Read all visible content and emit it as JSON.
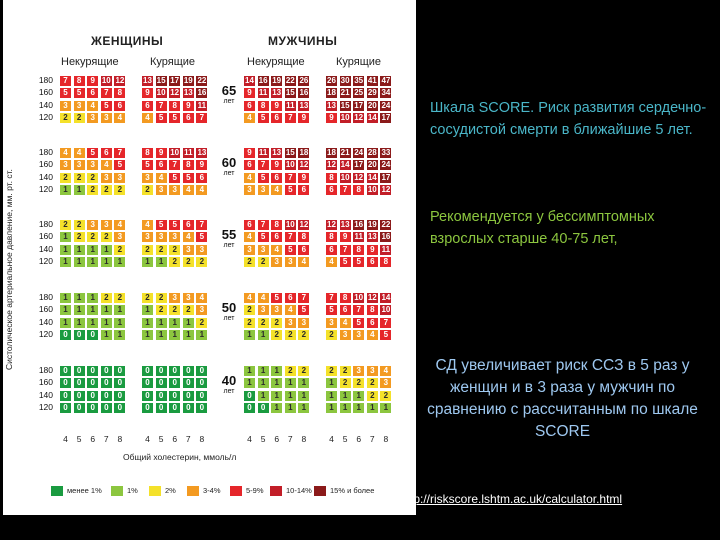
{
  "headers": {
    "women": "ЖЕНЩИНЫ",
    "men": "МУЖЧИНЫ",
    "nonsmoking": "Некурящие",
    "smoking": "Курящие"
  },
  "y_axis_label": "Систолическое артериальное давление, мм. рт. ст.",
  "x_axis_label": "Общий холестерин, ммоль/л",
  "bp_levels": [
    "180",
    "160",
    "140",
    "120"
  ],
  "cholesterol_levels": [
    "4",
    "5",
    "6",
    "7",
    "8"
  ],
  "age_unit": "лет",
  "colors": {
    "lt1": "#1a9b40",
    "p1": "#8cc63f",
    "p2": "#f4e12a",
    "p3_4": "#f39a21",
    "p5_9": "#e5262a",
    "p10_14": "#c21e28",
    "p15": "#8b1a1a"
  },
  "legend": [
    {
      "label": "менее 1%",
      "color": "#1a9b40"
    },
    {
      "label": "1%",
      "color": "#8cc63f"
    },
    {
      "label": "2%",
      "color": "#f4e12a"
    },
    {
      "label": "3-4%",
      "color": "#f39a21"
    },
    {
      "label": "5-9%",
      "color": "#e5262a"
    },
    {
      "label": "10-14%",
      "color": "#c21e28"
    },
    {
      "label": "15% и более",
      "color": "#8b1a1a"
    }
  ],
  "age_groups": [
    {
      "age": "65",
      "women_nonsmoking": [
        [
          7,
          8,
          9,
          10,
          12
        ],
        [
          5,
          5,
          6,
          7,
          8
        ],
        [
          3,
          3,
          4,
          5,
          6
        ],
        [
          2,
          2,
          3,
          3,
          4
        ]
      ],
      "women_smoking": [
        [
          13,
          15,
          17,
          19,
          22
        ],
        [
          9,
          10,
          12,
          13,
          16
        ],
        [
          6,
          7,
          8,
          9,
          11
        ],
        [
          4,
          5,
          5,
          6,
          7
        ]
      ],
      "men_nonsmoking": [
        [
          14,
          16,
          19,
          22,
          26
        ],
        [
          9,
          11,
          13,
          15,
          16
        ],
        [
          6,
          8,
          9,
          11,
          13
        ],
        [
          4,
          5,
          6,
          7,
          9
        ]
      ],
      "men_smoking": [
        [
          26,
          30,
          35,
          41,
          47
        ],
        [
          18,
          21,
          25,
          29,
          34
        ],
        [
          13,
          15,
          17,
          20,
          24
        ],
        [
          9,
          10,
          12,
          14,
          17
        ]
      ]
    },
    {
      "age": "60",
      "women_nonsmoking": [
        [
          4,
          4,
          5,
          6,
          7
        ],
        [
          3,
          3,
          3,
          4,
          5
        ],
        [
          2,
          2,
          2,
          3,
          3
        ],
        [
          1,
          1,
          2,
          2,
          2
        ]
      ],
      "women_smoking": [
        [
          8,
          9,
          10,
          11,
          13
        ],
        [
          5,
          6,
          7,
          8,
          9
        ],
        [
          3,
          4,
          5,
          5,
          6
        ],
        [
          2,
          3,
          3,
          4,
          4
        ]
      ],
      "men_nonsmoking": [
        [
          9,
          11,
          13,
          15,
          18
        ],
        [
          6,
          7,
          9,
          10,
          12
        ],
        [
          4,
          5,
          6,
          7,
          9
        ],
        [
          3,
          3,
          4,
          5,
          6
        ]
      ],
      "men_smoking": [
        [
          18,
          21,
          24,
          28,
          33
        ],
        [
          12,
          14,
          17,
          20,
          24
        ],
        [
          8,
          10,
          12,
          14,
          17
        ],
        [
          6,
          7,
          8,
          10,
          12
        ]
      ]
    },
    {
      "age": "55",
      "women_nonsmoking": [
        [
          2,
          2,
          3,
          3,
          4
        ],
        [
          1,
          2,
          2,
          2,
          3
        ],
        [
          1,
          1,
          1,
          1,
          2
        ],
        [
          1,
          1,
          1,
          1,
          1
        ]
      ],
      "women_smoking": [
        [
          4,
          5,
          5,
          6,
          7
        ],
        [
          3,
          3,
          3,
          4,
          5
        ],
        [
          2,
          2,
          2,
          3,
          3
        ],
        [
          1,
          1,
          2,
          2,
          2
        ]
      ],
      "men_nonsmoking": [
        [
          6,
          7,
          8,
          10,
          12
        ],
        [
          4,
          5,
          6,
          7,
          8
        ],
        [
          3,
          3,
          4,
          5,
          6
        ],
        [
          2,
          2,
          3,
          3,
          4
        ]
      ],
      "men_smoking": [
        [
          12,
          13,
          16,
          19,
          22
        ],
        [
          8,
          9,
          11,
          13,
          16
        ],
        [
          6,
          7,
          8,
          9,
          11
        ],
        [
          4,
          5,
          5,
          6,
          8
        ]
      ]
    },
    {
      "age": "50",
      "women_nonsmoking": [
        [
          1,
          1,
          1,
          2,
          2
        ],
        [
          1,
          1,
          1,
          1,
          1
        ],
        [
          1,
          1,
          1,
          1,
          1
        ],
        [
          0,
          0,
          0,
          1,
          1
        ]
      ],
      "women_smoking": [
        [
          2,
          2,
          3,
          3,
          4
        ],
        [
          1,
          2,
          2,
          2,
          3
        ],
        [
          1,
          1,
          1,
          1,
          2
        ],
        [
          1,
          1,
          1,
          1,
          1
        ]
      ],
      "men_nonsmoking": [
        [
          4,
          4,
          5,
          6,
          7
        ],
        [
          2,
          3,
          3,
          4,
          5
        ],
        [
          2,
          2,
          2,
          3,
          3
        ],
        [
          1,
          1,
          2,
          2,
          2
        ]
      ],
      "men_smoking": [
        [
          7,
          8,
          10,
          12,
          14
        ],
        [
          5,
          6,
          7,
          8,
          10
        ],
        [
          3,
          4,
          5,
          6,
          7
        ],
        [
          2,
          3,
          3,
          4,
          5
        ]
      ]
    },
    {
      "age": "40",
      "women_nonsmoking": [
        [
          0,
          0,
          0,
          0,
          0
        ],
        [
          0,
          0,
          0,
          0,
          0
        ],
        [
          0,
          0,
          0,
          0,
          0
        ],
        [
          0,
          0,
          0,
          0,
          0
        ]
      ],
      "women_smoking": [
        [
          0,
          0,
          0,
          0,
          0
        ],
        [
          0,
          0,
          0,
          0,
          0
        ],
        [
          0,
          0,
          0,
          0,
          0
        ],
        [
          0,
          0,
          0,
          0,
          0
        ]
      ],
      "men_nonsmoking": [
        [
          1,
          1,
          1,
          2,
          2
        ],
        [
          1,
          1,
          1,
          1,
          1
        ],
        [
          0,
          1,
          1,
          1,
          1
        ],
        [
          0,
          0,
          1,
          1,
          1
        ]
      ],
      "men_smoking": [
        [
          2,
          2,
          3,
          3,
          4
        ],
        [
          1,
          2,
          2,
          2,
          3
        ],
        [
          1,
          1,
          1,
          2,
          2
        ],
        [
          1,
          1,
          1,
          1,
          1
        ]
      ]
    }
  ],
  "side": {
    "title": "Шкала SCORE. Риск развития сердечно-сосудистой смерти в ближайшие 5 лет.",
    "recommendation": "Рекомендуется у бессимптомных взрослых старше 40-75 лет,",
    "diabetes": "СД увеличивает риск ССЗ в 5 раз у женщин и в 3 раза у мужчин по сравнению с рассчитанным по шкале SCORE",
    "url": "http://riskscore.lshtm.ac.uk/calculator.html"
  }
}
